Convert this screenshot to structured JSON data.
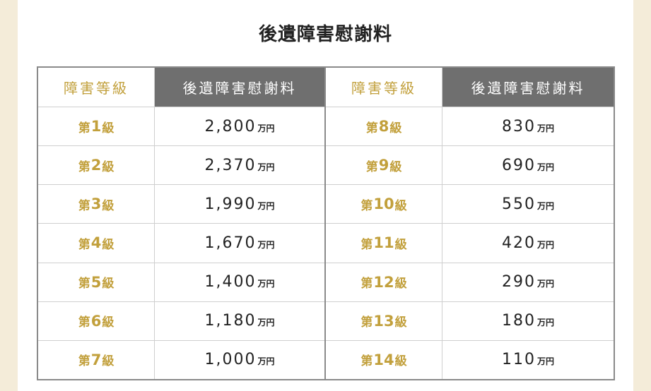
{
  "title": "後遺障害慰謝料",
  "header": {
    "grade": "障害等級",
    "amount": "後遺障害慰謝料"
  },
  "unit": "万円",
  "left_rows": [
    {
      "prefix": "第",
      "num": "1",
      "suffix": "級",
      "amount": "2,800"
    },
    {
      "prefix": "第",
      "num": "2",
      "suffix": "級",
      "amount": "2,370"
    },
    {
      "prefix": "第",
      "num": "3",
      "suffix": "級",
      "amount": "1,990"
    },
    {
      "prefix": "第",
      "num": "4",
      "suffix": "級",
      "amount": "1,670"
    },
    {
      "prefix": "第",
      "num": "5",
      "suffix": "級",
      "amount": "1,400"
    },
    {
      "prefix": "第",
      "num": "6",
      "suffix": "級",
      "amount": "1,180"
    },
    {
      "prefix": "第",
      "num": "7",
      "suffix": "級",
      "amount": "1,000"
    }
  ],
  "right_rows": [
    {
      "prefix": "第",
      "num": "8",
      "suffix": "級",
      "amount": "830"
    },
    {
      "prefix": "第",
      "num": "9",
      "suffix": "級",
      "amount": "690"
    },
    {
      "prefix": "第",
      "num": "10",
      "suffix": "級",
      "amount": "550"
    },
    {
      "prefix": "第",
      "num": "11",
      "suffix": "級",
      "amount": "420"
    },
    {
      "prefix": "第",
      "num": "12",
      "suffix": "級",
      "amount": "290"
    },
    {
      "prefix": "第",
      "num": "13",
      "suffix": "級",
      "amount": "180"
    },
    {
      "prefix": "第",
      "num": "14",
      "suffix": "級",
      "amount": "110"
    }
  ],
  "colors": {
    "background": "#f4ecd9",
    "gold": "#c2a03c",
    "header_gray": "#6f6f6f"
  }
}
